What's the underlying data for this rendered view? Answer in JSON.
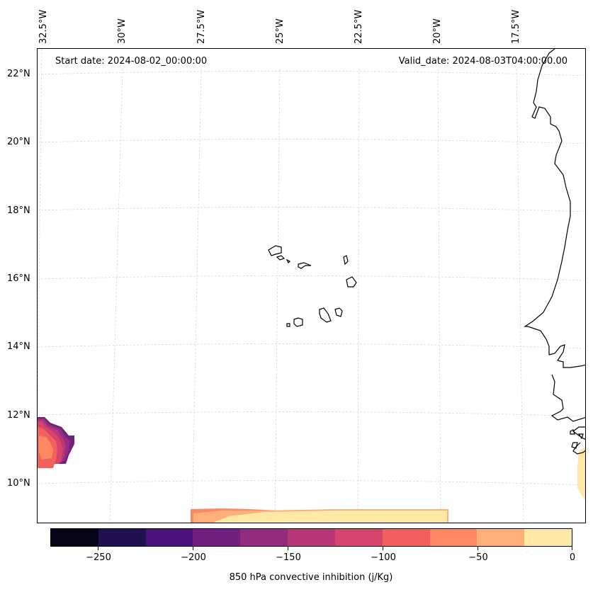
{
  "map": {
    "start_date": "Start date: 2024-08-02_00:00:00",
    "valid_date": "Valid_date: 2024-08-03T04:00:00.00",
    "lon_labels": [
      "32.5°W",
      "30°W",
      "27.5°W",
      "25°W",
      "22.5°W",
      "20°W",
      "17.5°W"
    ],
    "lat_labels": [
      "22°N",
      "20°N",
      "18°N",
      "16°N",
      "14°N",
      "12°N",
      "10°N"
    ],
    "gridline_color": "#d9d9d9",
    "coastline_color": "#000000"
  },
  "colorbar": {
    "label": "850 hPa convective inhibition (j/Kg)",
    "colormap": "magma",
    "levels": [
      -275,
      -250,
      -225,
      -200,
      -175,
      -150,
      -125,
      -100,
      -75,
      -50,
      -25,
      0
    ],
    "colors": [
      "#050416",
      "#221150",
      "#4d117b",
      "#731f81",
      "#942c80",
      "#b73779",
      "#d8456c",
      "#f1605d",
      "#fc8961",
      "#feb078",
      "#fde8a5"
    ],
    "tick_labels": [
      "−250",
      "−200",
      "−150",
      "−100",
      "−50",
      "0"
    ]
  }
}
